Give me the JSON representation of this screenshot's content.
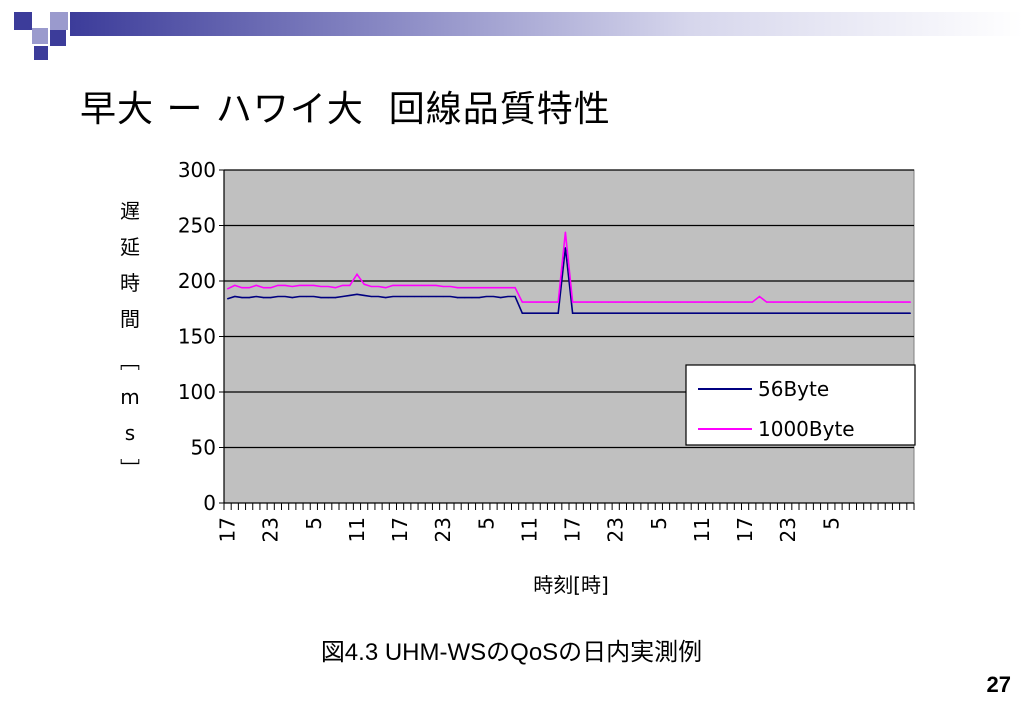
{
  "slide": {
    "title": "早大 ー ハワイ大  回線品質特性",
    "caption": "図4.3 UHM-WSのQoSの日内実測例",
    "page_number": "27"
  },
  "colors": {
    "plot_bg": "#c0c0c0",
    "series_56": "#000080",
    "series_1000": "#ff00ff",
    "accent_dark": "#3c3c9a",
    "accent_light": "#9a9acd"
  },
  "chart_data": {
    "type": "line",
    "title": "",
    "xlabel": "時刻[時]",
    "ylabel": "遅延時間[ms]",
    "ylim": [
      0,
      300
    ],
    "yticks": [
      0,
      50,
      100,
      150,
      200,
      250,
      300
    ],
    "grid": true,
    "legend_position": "bottom-right",
    "x_tick_labels": [
      "17",
      "23",
      "5",
      "11",
      "17",
      "23",
      "5",
      "11",
      "17",
      "23",
      "5",
      "11",
      "17",
      "23",
      "5"
    ],
    "x_tick_interval_points": 6,
    "series": [
      {
        "name": "56Byte",
        "color": "#000080",
        "values": [
          184,
          186,
          185,
          185,
          186,
          185,
          185,
          186,
          186,
          185,
          186,
          186,
          186,
          185,
          185,
          185,
          186,
          187,
          188,
          187,
          186,
          186,
          185,
          186,
          186,
          186,
          186,
          186,
          186,
          186,
          186,
          186,
          185,
          185,
          185,
          185,
          186,
          186,
          185,
          186,
          186,
          171,
          171,
          171,
          171,
          171,
          171,
          230,
          171,
          171,
          171,
          171,
          171,
          171,
          171,
          171,
          171,
          171,
          171,
          171,
          171,
          171,
          171,
          171,
          171,
          171,
          171,
          171,
          171,
          171,
          171,
          171,
          171,
          171,
          171,
          171,
          171,
          171,
          171,
          171,
          171,
          171,
          171,
          171,
          171,
          171,
          171,
          171,
          171,
          171,
          171,
          171,
          171,
          171,
          171,
          171
        ]
      },
      {
        "name": "1000Byte",
        "color": "#ff00ff",
        "values": [
          193,
          196,
          194,
          194,
          196,
          194,
          194,
          196,
          196,
          195,
          196,
          196,
          196,
          195,
          195,
          194,
          196,
          196,
          206,
          197,
          195,
          195,
          194,
          196,
          196,
          196,
          196,
          196,
          196,
          196,
          195,
          195,
          194,
          194,
          194,
          194,
          194,
          194,
          194,
          194,
          194,
          181,
          181,
          181,
          181,
          181,
          181,
          244,
          181,
          181,
          181,
          181,
          181,
          181,
          181,
          181,
          181,
          181,
          181,
          181,
          181,
          181,
          181,
          181,
          181,
          181,
          181,
          181,
          181,
          181,
          181,
          181,
          181,
          181,
          186,
          181,
          181,
          181,
          181,
          181,
          181,
          181,
          181,
          181,
          181,
          181,
          181,
          181,
          181,
          181,
          181,
          181,
          181,
          181,
          181,
          181
        ]
      }
    ]
  }
}
